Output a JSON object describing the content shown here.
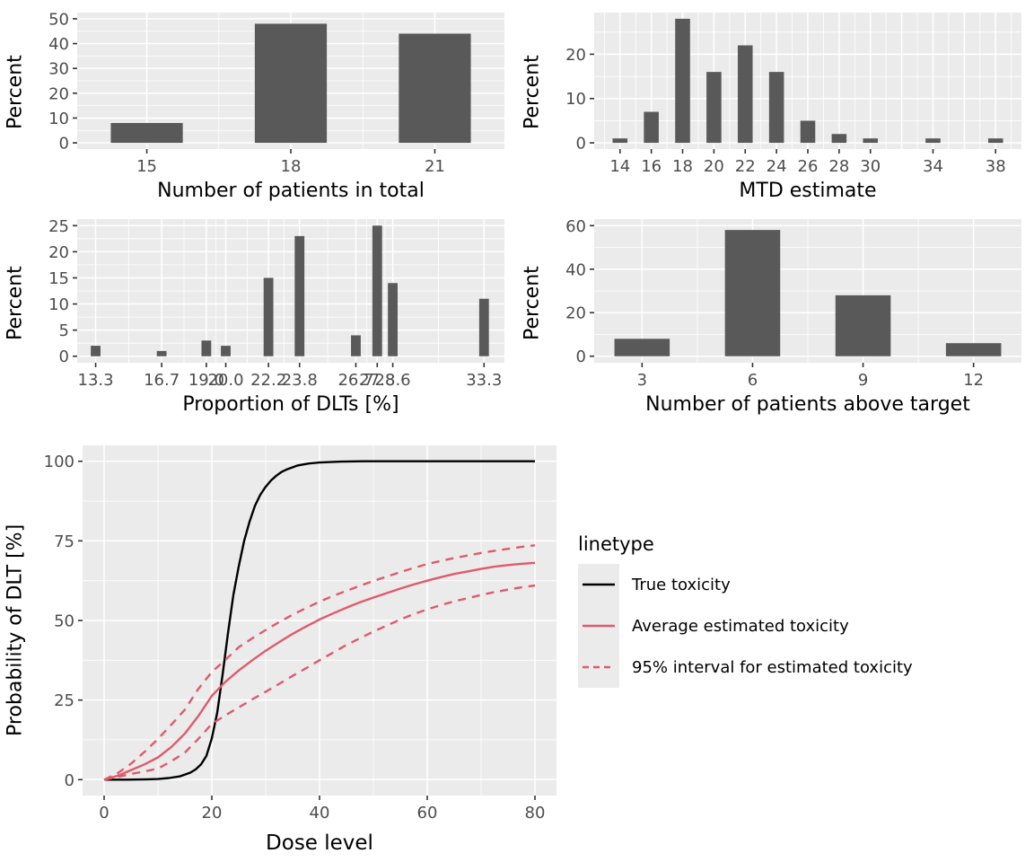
{
  "palette": {
    "page_bg": "#FFFFFF",
    "panel_bg": "#EBEBEB",
    "grid": "#FFFFFF",
    "bar": "#595959",
    "tick_text": "#4D4D4D",
    "tick_mark": "#333333",
    "axis_title": "#000000",
    "red": "#E05A6B",
    "black": "#000000"
  },
  "chart_data": [
    {
      "id": "patients-total",
      "type": "bar",
      "xlabel": "Number of patients in total",
      "ylabel": "Percent",
      "xlim": [
        13.55,
        22.45
      ],
      "ymax": 50,
      "yticks": [
        0,
        10,
        20,
        30,
        40,
        50
      ],
      "y_minor": [
        5,
        15,
        25,
        35,
        45
      ],
      "xticks": [
        15,
        18,
        21
      ],
      "xtick_labels": [
        "15",
        "18",
        "21"
      ],
      "x_major": [
        15,
        18,
        21
      ],
      "x_minor": [
        16.5,
        19.5
      ],
      "bar_width": 1.5,
      "bars": [
        {
          "x": 15,
          "percent": 8
        },
        {
          "x": 18,
          "percent": 48
        },
        {
          "x": 21,
          "percent": 44
        }
      ]
    },
    {
      "id": "mtd-estimate",
      "type": "bar",
      "xlabel": "MTD estimate",
      "ylabel": "Percent",
      "xlim": [
        12.35,
        39.65
      ],
      "ymax": 28,
      "yticks": [
        0,
        10,
        20
      ],
      "y_minor": [
        5,
        15,
        25
      ],
      "xticks": [
        14,
        16,
        18,
        20,
        22,
        24,
        26,
        28,
        30,
        34,
        38
      ],
      "xtick_labels": [
        "14",
        "16",
        "18",
        "20",
        "22",
        "24",
        "26",
        "28",
        "30",
        "34",
        "38"
      ],
      "x_major": [
        14,
        16,
        18,
        20,
        22,
        24,
        26,
        28,
        30,
        32,
        34,
        36,
        38
      ],
      "x_minor": [
        13,
        15,
        17,
        19,
        21,
        23,
        25,
        27,
        29,
        31,
        33,
        35,
        37,
        39
      ],
      "bar_width": 0.95,
      "bars": [
        {
          "x": 14,
          "percent": 1
        },
        {
          "x": 16,
          "percent": 7
        },
        {
          "x": 18,
          "percent": 28
        },
        {
          "x": 20,
          "percent": 16
        },
        {
          "x": 22,
          "percent": 22
        },
        {
          "x": 24,
          "percent": 16
        },
        {
          "x": 26,
          "percent": 5
        },
        {
          "x": 28,
          "percent": 2
        },
        {
          "x": 30,
          "percent": 1
        },
        {
          "x": 34,
          "percent": 1
        },
        {
          "x": 38,
          "percent": 1
        }
      ]
    },
    {
      "id": "dlt-proportion",
      "type": "bar",
      "xlabel": "Proportion of DLTs [%]",
      "ylabel": "Percent",
      "xlim": [
        12.35,
        34.35
      ],
      "ymax": 25,
      "yticks": [
        0,
        5,
        10,
        15,
        20,
        25
      ],
      "y_minor": [
        2.5,
        7.5,
        12.5,
        17.5,
        22.5
      ],
      "xticks": [
        13.3,
        16.7,
        19.0,
        20.0,
        22.2,
        23.8,
        26.7,
        27.8,
        28.6,
        33.3
      ],
      "xtick_labels": [
        "13.3",
        "16.7",
        "19.0",
        "20.0",
        "22.2",
        "23.8",
        "26.7",
        "27.8",
        "28.6",
        "33.3"
      ],
      "x_major": [
        13.3,
        16.7,
        19.0,
        20.0,
        22.2,
        23.8,
        26.7,
        27.8,
        28.6,
        33.3
      ],
      "x_minor": [
        15.0,
        17.85,
        19.5,
        21.1,
        23.0,
        25.25,
        27.25,
        28.2,
        30.95
      ],
      "bar_width": 0.5,
      "bars": [
        {
          "x": 13.3,
          "percent": 2
        },
        {
          "x": 16.7,
          "percent": 1
        },
        {
          "x": 19.0,
          "percent": 3
        },
        {
          "x": 20.0,
          "percent": 2
        },
        {
          "x": 22.2,
          "percent": 15
        },
        {
          "x": 23.8,
          "percent": 23
        },
        {
          "x": 26.7,
          "percent": 4
        },
        {
          "x": 27.8,
          "percent": 25
        },
        {
          "x": 28.6,
          "percent": 14
        },
        {
          "x": 33.3,
          "percent": 11
        }
      ]
    },
    {
      "id": "patients-above-target",
      "type": "bar",
      "xlabel": "Number of patients above target",
      "ylabel": "Percent",
      "xlim": [
        1.7,
        13.3
      ],
      "ymax": 60,
      "yticks": [
        0,
        20,
        40,
        60
      ],
      "y_minor": [
        10,
        30,
        50
      ],
      "xticks": [
        3,
        6,
        9,
        12
      ],
      "xtick_labels": [
        "3",
        "6",
        "9",
        "12"
      ],
      "x_major": [
        3,
        6,
        9,
        12
      ],
      "x_minor": [
        4.5,
        7.5,
        10.5
      ],
      "bar_width": 1.5,
      "bars": [
        {
          "x": 3,
          "percent": 8
        },
        {
          "x": 6,
          "percent": 58
        },
        {
          "x": 9,
          "percent": 28
        },
        {
          "x": 12,
          "percent": 6
        }
      ]
    },
    {
      "id": "dose-toxicity",
      "type": "line",
      "xlabel": "Dose level",
      "ylabel": "Probability of DLT [%]",
      "xlim": [
        -4,
        84
      ],
      "ymax": 100,
      "yticks": [
        0,
        25,
        50,
        75,
        100
      ],
      "y_minor": [
        12.5,
        37.5,
        62.5,
        87.5
      ],
      "xticks": [
        0,
        20,
        40,
        60,
        80
      ],
      "xtick_labels": [
        "0",
        "20",
        "40",
        "60",
        "80"
      ],
      "x_major": [
        0,
        20,
        40,
        60,
        80
      ],
      "x_minor": [
        10,
        30,
        50,
        70
      ],
      "series": [
        {
          "name": "True toxicity",
          "color": "#000000",
          "dash": "solid",
          "points": [
            [
              0,
              0
            ],
            [
              4,
              0
            ],
            [
              8,
              0.1
            ],
            [
              10,
              0.2
            ],
            [
              12,
              0.5
            ],
            [
              14,
              1
            ],
            [
              16,
              2.2
            ],
            [
              17,
              3.2
            ],
            [
              18,
              4.8
            ],
            [
              19,
              7.5
            ],
            [
              20,
              13
            ],
            [
              21,
              21
            ],
            [
              22,
              33
            ],
            [
              23,
              46
            ],
            [
              24,
              58
            ],
            [
              25,
              67
            ],
            [
              26,
              75
            ],
            [
              27,
              81
            ],
            [
              28,
              86
            ],
            [
              29,
              89.5
            ],
            [
              30,
              92
            ],
            [
              31,
              94
            ],
            [
              32,
              95.5
            ],
            [
              33,
              96.7
            ],
            [
              34,
              97.5
            ],
            [
              36,
              98.7
            ],
            [
              38,
              99.3
            ],
            [
              40,
              99.6
            ],
            [
              44,
              99.9
            ],
            [
              48,
              100
            ],
            [
              56,
              100
            ],
            [
              64,
              100
            ],
            [
              72,
              100
            ],
            [
              80,
              100
            ]
          ]
        },
        {
          "name": "Average estimated toxicity",
          "color": "#E05A6B",
          "dash": "solid",
          "points": [
            [
              0,
              0
            ],
            [
              2.5,
              1.2
            ],
            [
              5,
              3
            ],
            [
              7.5,
              4.8
            ],
            [
              10,
              7
            ],
            [
              12.5,
              10.3
            ],
            [
              15,
              14.5
            ],
            [
              17.5,
              20
            ],
            [
              20,
              26.3
            ],
            [
              22.5,
              30.7
            ],
            [
              25,
              34.3
            ],
            [
              27.5,
              37.5
            ],
            [
              30,
              40.5
            ],
            [
              32.5,
              43.2
            ],
            [
              35,
              45.8
            ],
            [
              37.5,
              48.1
            ],
            [
              40,
              50.3
            ],
            [
              42.5,
              52.2
            ],
            [
              45,
              54
            ],
            [
              47.5,
              55.7
            ],
            [
              50,
              57.2
            ],
            [
              52.5,
              58.6
            ],
            [
              55,
              60
            ],
            [
              57.5,
              61.3
            ],
            [
              60,
              62.5
            ],
            [
              62.5,
              63.6
            ],
            [
              65,
              64.6
            ],
            [
              67.5,
              65.4
            ],
            [
              70,
              66.2
            ],
            [
              72.5,
              66.9
            ],
            [
              75,
              67.4
            ],
            [
              77.5,
              67.8
            ],
            [
              80,
              68.1
            ]
          ]
        },
        {
          "name": "95% interval upper bound",
          "color": "#E05A6B",
          "dash": "dashed",
          "points": [
            [
              0,
              0
            ],
            [
              2.5,
              2
            ],
            [
              5,
              5
            ],
            [
              7.5,
              8.7
            ],
            [
              10,
              12.8
            ],
            [
              12.5,
              17.3
            ],
            [
              15,
              22
            ],
            [
              17.5,
              28.5
            ],
            [
              20,
              33.8
            ],
            [
              22.5,
              37.6
            ],
            [
              25,
              41.6
            ],
            [
              27.5,
              44.4
            ],
            [
              30,
              47
            ],
            [
              32.5,
              49.5
            ],
            [
              35,
              51.8
            ],
            [
              37.5,
              53.9
            ],
            [
              40,
              55.9
            ],
            [
              42.5,
              57.7
            ],
            [
              45,
              59.3
            ],
            [
              47.5,
              60.9
            ],
            [
              50,
              62.4
            ],
            [
              52.5,
              63.8
            ],
            [
              55,
              65.2
            ],
            [
              57.5,
              66.5
            ],
            [
              60,
              67.7
            ],
            [
              62.5,
              68.7
            ],
            [
              65,
              69.6
            ],
            [
              67.5,
              70.4
            ],
            [
              70,
              71.2
            ],
            [
              72.5,
              71.9
            ],
            [
              75,
              72.5
            ],
            [
              77.5,
              73.1
            ],
            [
              80,
              73.6
            ]
          ]
        },
        {
          "name": "95% interval lower bound",
          "color": "#E05A6B",
          "dash": "dashed",
          "points": [
            [
              0,
              0
            ],
            [
              2.5,
              0.8
            ],
            [
              5,
              1.8
            ],
            [
              7.5,
              2.6
            ],
            [
              10,
              3.5
            ],
            [
              12.5,
              5.8
            ],
            [
              15,
              8.5
            ],
            [
              17.5,
              12.8
            ],
            [
              20,
              17.5
            ],
            [
              22.5,
              20.2
            ],
            [
              25,
              22.7
            ],
            [
              27.5,
              25.2
            ],
            [
              30,
              27.6
            ],
            [
              32.5,
              30.1
            ],
            [
              35,
              32.6
            ],
            [
              37.5,
              35
            ],
            [
              40,
              37.5
            ],
            [
              42.5,
              39.9
            ],
            [
              45,
              42.3
            ],
            [
              47.5,
              44.4
            ],
            [
              50,
              46.5
            ],
            [
              52.5,
              48.4
            ],
            [
              55,
              50.3
            ],
            [
              57.5,
              52
            ],
            [
              60,
              53.5
            ],
            [
              62.5,
              54.8
            ],
            [
              65,
              56
            ],
            [
              67.5,
              57
            ],
            [
              70,
              58
            ],
            [
              72.5,
              58.9
            ],
            [
              75,
              59.7
            ],
            [
              77.5,
              60.4
            ],
            [
              80,
              61
            ]
          ]
        }
      ]
    }
  ],
  "legend": {
    "title": "linetype",
    "items": [
      {
        "label": "True toxicity",
        "color": "#000000",
        "dash": "solid"
      },
      {
        "label": "Average estimated toxicity",
        "color": "#E05A6B",
        "dash": "solid"
      },
      {
        "label": "95% interval for estimated toxicity",
        "color": "#E05A6B",
        "dash": "dashed"
      }
    ]
  }
}
